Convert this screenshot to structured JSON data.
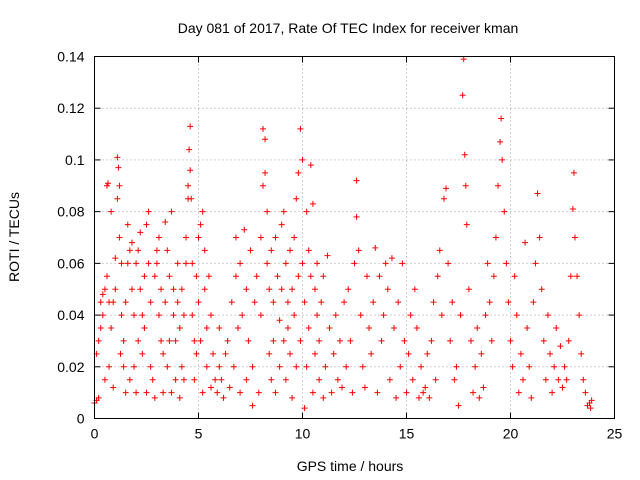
{
  "chart_data": {
    "type": "scatter",
    "title": "Day 081 of 2017, Rate Of TEC Index for receiver kman",
    "xlabel": "GPS time / hours",
    "ylabel": "ROTI / TECUs",
    "xlim": [
      0,
      25
    ],
    "ylim": [
      0,
      0.14
    ],
    "xticks": [
      0,
      5,
      10,
      15,
      20,
      25
    ],
    "xtick_labels": [
      "0",
      "5",
      "10",
      "15",
      "20",
      "25"
    ],
    "yticks": [
      0,
      0.02,
      0.04,
      0.06,
      0.08,
      0.1,
      0.12,
      0.14
    ],
    "ytick_labels": [
      "0",
      "0.02",
      "0.04",
      "0.06",
      "0.08",
      "0.1",
      "0.12",
      "0.14"
    ],
    "grid": true,
    "marker": "plus",
    "color": "#ff0000",
    "points": [
      [
        0.0,
        0.006
      ],
      [
        0.1,
        0.007
      ],
      [
        0.1,
        0.025
      ],
      [
        0.2,
        0.03
      ],
      [
        0.2,
        0.008
      ],
      [
        0.3,
        0.035
      ],
      [
        0.3,
        0.045
      ],
      [
        0.4,
        0.04
      ],
      [
        0.4,
        0.048
      ],
      [
        0.5,
        0.05
      ],
      [
        0.5,
        0.015
      ],
      [
        0.6,
        0.055
      ],
      [
        0.6,
        0.09
      ],
      [
        0.65,
        0.091
      ],
      [
        0.7,
        0.045
      ],
      [
        0.7,
        0.02
      ],
      [
        0.8,
        0.035
      ],
      [
        0.8,
        0.08
      ],
      [
        0.9,
        0.045
      ],
      [
        0.9,
        0.012
      ],
      [
        1.0,
        0.05
      ],
      [
        1.0,
        0.062
      ],
      [
        1.1,
        0.085
      ],
      [
        1.1,
        0.101
      ],
      [
        1.15,
        0.097
      ],
      [
        1.2,
        0.09
      ],
      [
        1.2,
        0.07
      ],
      [
        1.25,
        0.025
      ],
      [
        1.3,
        0.06
      ],
      [
        1.3,
        0.04
      ],
      [
        1.4,
        0.02
      ],
      [
        1.4,
        0.03
      ],
      [
        1.5,
        0.01
      ],
      [
        1.5,
        0.045
      ],
      [
        1.6,
        0.06
      ],
      [
        1.6,
        0.075
      ],
      [
        1.7,
        0.065
      ],
      [
        1.7,
        0.015
      ],
      [
        1.8,
        0.05
      ],
      [
        1.8,
        0.068
      ],
      [
        1.9,
        0.02
      ],
      [
        1.9,
        0.04
      ],
      [
        2.0,
        0.06
      ],
      [
        2.0,
        0.01
      ],
      [
        2.1,
        0.03
      ],
      [
        2.1,
        0.065
      ],
      [
        2.2,
        0.05
      ],
      [
        2.2,
        0.072
      ],
      [
        2.3,
        0.04
      ],
      [
        2.3,
        0.025
      ],
      [
        2.4,
        0.055
      ],
      [
        2.4,
        0.035
      ],
      [
        2.5,
        0.01
      ],
      [
        2.5,
        0.075
      ],
      [
        2.6,
        0.08
      ],
      [
        2.6,
        0.06
      ],
      [
        2.7,
        0.045
      ],
      [
        2.7,
        0.02
      ],
      [
        2.8,
        0.015
      ],
      [
        2.9,
        0.055
      ],
      [
        2.9,
        0.008
      ],
      [
        3.0,
        0.06
      ],
      [
        3.0,
        0.065
      ],
      [
        3.1,
        0.04
      ],
      [
        3.1,
        0.07
      ],
      [
        3.2,
        0.03
      ],
      [
        3.2,
        0.05
      ],
      [
        3.3,
        0.025
      ],
      [
        3.3,
        0.01
      ],
      [
        3.4,
        0.045
      ],
      [
        3.4,
        0.076
      ],
      [
        3.5,
        0.065
      ],
      [
        3.5,
        0.02
      ],
      [
        3.6,
        0.03
      ],
      [
        3.6,
        0.055
      ],
      [
        3.7,
        0.08
      ],
      [
        3.7,
        0.01
      ],
      [
        3.8,
        0.05
      ],
      [
        3.8,
        0.04
      ],
      [
        3.9,
        0.03
      ],
      [
        3.9,
        0.015
      ],
      [
        4.0,
        0.045
      ],
      [
        4.0,
        0.06
      ],
      [
        4.1,
        0.035
      ],
      [
        4.1,
        0.008
      ],
      [
        4.2,
        0.02
      ],
      [
        4.2,
        0.05
      ],
      [
        4.3,
        0.04
      ],
      [
        4.3,
        0.015
      ],
      [
        4.4,
        0.07
      ],
      [
        4.4,
        0.06
      ],
      [
        4.5,
        0.085
      ],
      [
        4.5,
        0.09
      ],
      [
        4.55,
        0.104
      ],
      [
        4.6,
        0.113
      ],
      [
        4.6,
        0.096
      ],
      [
        4.65,
        0.085
      ],
      [
        4.7,
        0.06
      ],
      [
        4.7,
        0.04
      ],
      [
        4.8,
        0.03
      ],
      [
        4.8,
        0.015
      ],
      [
        4.9,
        0.025
      ],
      [
        4.9,
        0.055
      ],
      [
        5.0,
        0.07
      ],
      [
        5.0,
        0.045
      ],
      [
        5.1,
        0.075
      ],
      [
        5.1,
        0.03
      ],
      [
        5.2,
        0.08
      ],
      [
        5.2,
        0.01
      ],
      [
        5.3,
        0.05
      ],
      [
        5.3,
        0.065
      ],
      [
        5.4,
        0.02
      ],
      [
        5.4,
        0.035
      ],
      [
        5.5,
        0.055
      ],
      [
        5.6,
        0.012
      ],
      [
        5.6,
        0.04
      ],
      [
        5.7,
        0.025
      ],
      [
        5.8,
        0.015
      ],
      [
        5.9,
        0.01
      ],
      [
        6.0,
        0.02
      ],
      [
        6.0,
        0.035
      ],
      [
        6.1,
        0.015
      ],
      [
        6.2,
        0.008
      ],
      [
        6.3,
        0.025
      ],
      [
        6.4,
        0.03
      ],
      [
        6.5,
        0.012
      ],
      [
        6.6,
        0.045
      ],
      [
        6.7,
        0.02
      ],
      [
        6.8,
        0.07
      ],
      [
        6.8,
        0.055
      ],
      [
        6.9,
        0.035
      ],
      [
        7.0,
        0.01
      ],
      [
        7.0,
        0.06
      ],
      [
        7.1,
        0.04
      ],
      [
        7.2,
        0.073
      ],
      [
        7.3,
        0.05
      ],
      [
        7.3,
        0.015
      ],
      [
        7.4,
        0.03
      ],
      [
        7.5,
        0.065
      ],
      [
        7.6,
        0.02
      ],
      [
        7.6,
        0.005
      ],
      [
        7.7,
        0.045
      ],
      [
        7.8,
        0.055
      ],
      [
        7.9,
        0.01
      ],
      [
        8.0,
        0.07
      ],
      [
        8.0,
        0.04
      ],
      [
        8.1,
        0.09
      ],
      [
        8.1,
        0.112
      ],
      [
        8.2,
        0.108
      ],
      [
        8.2,
        0.095
      ],
      [
        8.3,
        0.08
      ],
      [
        8.3,
        0.06
      ],
      [
        8.4,
        0.05
      ],
      [
        8.4,
        0.025
      ],
      [
        8.5,
        0.065
      ],
      [
        8.5,
        0.015
      ],
      [
        8.6,
        0.03
      ],
      [
        8.6,
        0.045
      ],
      [
        8.7,
        0.07
      ],
      [
        8.7,
        0.01
      ],
      [
        8.8,
        0.055
      ],
      [
        8.9,
        0.038
      ],
      [
        8.9,
        0.02
      ],
      [
        9.0,
        0.05
      ],
      [
        9.0,
        0.075
      ],
      [
        9.1,
        0.08
      ],
      [
        9.1,
        0.03
      ],
      [
        9.2,
        0.06
      ],
      [
        9.2,
        0.015
      ],
      [
        9.3,
        0.045
      ],
      [
        9.3,
        0.035
      ],
      [
        9.4,
        0.025
      ],
      [
        9.4,
        0.065
      ],
      [
        9.5,
        0.05
      ],
      [
        9.5,
        0.008
      ],
      [
        9.6,
        0.04
      ],
      [
        9.6,
        0.07
      ],
      [
        9.7,
        0.085
      ],
      [
        9.7,
        0.02
      ],
      [
        9.8,
        0.095
      ],
      [
        9.8,
        0.055
      ],
      [
        9.9,
        0.112
      ],
      [
        9.9,
        0.03
      ],
      [
        10.0,
        0.1
      ],
      [
        10.0,
        0.06
      ],
      [
        10.1,
        0.045
      ],
      [
        10.1,
        0.004
      ],
      [
        10.2,
        0.08
      ],
      [
        10.2,
        0.02
      ],
      [
        10.3,
        0.065
      ],
      [
        10.3,
        0.035
      ],
      [
        10.4,
        0.055
      ],
      [
        10.4,
        0.098
      ],
      [
        10.5,
        0.083
      ],
      [
        10.5,
        0.01
      ],
      [
        10.6,
        0.05
      ],
      [
        10.6,
        0.025
      ],
      [
        10.7,
        0.04
      ],
      [
        10.7,
        0.06
      ],
      [
        10.8,
        0.03
      ],
      [
        10.8,
        0.015
      ],
      [
        10.9,
        0.045
      ],
      [
        11.0,
        0.055
      ],
      [
        11.0,
        0.008
      ],
      [
        11.1,
        0.02
      ],
      [
        11.2,
        0.063
      ],
      [
        11.3,
        0.035
      ],
      [
        11.4,
        0.01
      ],
      [
        11.5,
        0.025
      ],
      [
        11.6,
        0.04
      ],
      [
        11.7,
        0.015
      ],
      [
        11.8,
        0.03
      ],
      [
        11.9,
        0.012
      ],
      [
        12.0,
        0.045
      ],
      [
        12.1,
        0.02
      ],
      [
        12.2,
        0.05
      ],
      [
        12.3,
        0.03
      ],
      [
        12.4,
        0.01
      ],
      [
        12.5,
        0.06
      ],
      [
        12.6,
        0.078
      ],
      [
        12.6,
        0.092
      ],
      [
        12.7,
        0.065
      ],
      [
        12.8,
        0.04
      ],
      [
        12.9,
        0.02
      ],
      [
        13.0,
        0.012
      ],
      [
        13.1,
        0.055
      ],
      [
        13.2,
        0.035
      ],
      [
        13.3,
        0.025
      ],
      [
        13.4,
        0.045
      ],
      [
        13.5,
        0.066
      ],
      [
        13.6,
        0.01
      ],
      [
        13.7,
        0.055
      ],
      [
        13.8,
        0.03
      ],
      [
        13.9,
        0.04
      ],
      [
        14.0,
        0.06
      ],
      [
        14.1,
        0.05
      ],
      [
        14.2,
        0.015
      ],
      [
        14.3,
        0.062
      ],
      [
        14.4,
        0.035
      ],
      [
        14.5,
        0.008
      ],
      [
        14.6,
        0.045
      ],
      [
        14.7,
        0.02
      ],
      [
        14.8,
        0.06
      ],
      [
        14.9,
        0.03
      ],
      [
        15.0,
        0.01
      ],
      [
        15.1,
        0.025
      ],
      [
        15.2,
        0.04
      ],
      [
        15.3,
        0.015
      ],
      [
        15.4,
        0.05
      ],
      [
        15.5,
        0.035
      ],
      [
        15.6,
        0.008
      ],
      [
        15.7,
        0.02
      ],
      [
        15.8,
        0.01
      ],
      [
        15.9,
        0.012
      ],
      [
        16.0,
        0.025
      ],
      [
        16.1,
        0.008
      ],
      [
        16.2,
        0.03
      ],
      [
        16.3,
        0.045
      ],
      [
        16.4,
        0.015
      ],
      [
        16.5,
        0.055
      ],
      [
        16.6,
        0.065
      ],
      [
        16.7,
        0.04
      ],
      [
        16.8,
        0.085
      ],
      [
        16.9,
        0.089
      ],
      [
        17.0,
        0.06
      ],
      [
        17.1,
        0.03
      ],
      [
        17.2,
        0.045
      ],
      [
        17.3,
        0.015
      ],
      [
        17.4,
        0.02
      ],
      [
        17.5,
        0.005
      ],
      [
        17.6,
        0.04
      ],
      [
        17.7,
        0.125
      ],
      [
        17.75,
        0.139
      ],
      [
        17.8,
        0.102
      ],
      [
        17.85,
        0.09
      ],
      [
        17.9,
        0.075
      ],
      [
        18.0,
        0.05
      ],
      [
        18.1,
        0.03
      ],
      [
        18.2,
        0.01
      ],
      [
        18.3,
        0.02
      ],
      [
        18.4,
        0.035
      ],
      [
        18.5,
        0.008
      ],
      [
        18.6,
        0.025
      ],
      [
        18.7,
        0.012
      ],
      [
        18.8,
        0.04
      ],
      [
        18.9,
        0.06
      ],
      [
        19.0,
        0.045
      ],
      [
        19.1,
        0.03
      ],
      [
        19.2,
        0.055
      ],
      [
        19.3,
        0.07
      ],
      [
        19.4,
        0.09
      ],
      [
        19.5,
        0.107
      ],
      [
        19.55,
        0.116
      ],
      [
        19.6,
        0.1
      ],
      [
        19.7,
        0.08
      ],
      [
        19.8,
        0.06
      ],
      [
        19.9,
        0.045
      ],
      [
        20.0,
        0.03
      ],
      [
        20.1,
        0.02
      ],
      [
        20.2,
        0.055
      ],
      [
        20.3,
        0.04
      ],
      [
        20.4,
        0.01
      ],
      [
        20.5,
        0.025
      ],
      [
        20.6,
        0.015
      ],
      [
        20.7,
        0.068
      ],
      [
        20.8,
        0.035
      ],
      [
        20.9,
        0.02
      ],
      [
        21.0,
        0.008
      ],
      [
        21.1,
        0.045
      ],
      [
        21.2,
        0.06
      ],
      [
        21.3,
        0.087
      ],
      [
        21.4,
        0.07
      ],
      [
        21.5,
        0.05
      ],
      [
        21.6,
        0.03
      ],
      [
        21.7,
        0.015
      ],
      [
        21.8,
        0.04
      ],
      [
        21.9,
        0.025
      ],
      [
        22.0,
        0.01
      ],
      [
        22.1,
        0.02
      ],
      [
        22.2,
        0.035
      ],
      [
        22.3,
        0.015
      ],
      [
        22.4,
        0.028
      ],
      [
        22.5,
        0.012
      ],
      [
        22.6,
        0.02
      ],
      [
        22.7,
        0.015
      ],
      [
        22.8,
        0.03
      ],
      [
        22.9,
        0.055
      ],
      [
        23.0,
        0.081
      ],
      [
        23.05,
        0.095
      ],
      [
        23.1,
        0.07
      ],
      [
        23.2,
        0.055
      ],
      [
        23.3,
        0.04
      ],
      [
        23.4,
        0.025
      ],
      [
        23.5,
        0.015
      ],
      [
        23.6,
        0.01
      ],
      [
        23.7,
        0.005
      ],
      [
        23.8,
        0.006
      ],
      [
        23.85,
        0.004
      ],
      [
        23.9,
        0.007
      ]
    ]
  }
}
